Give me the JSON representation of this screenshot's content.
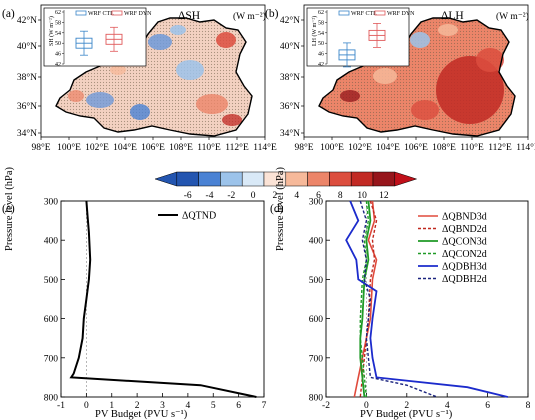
{
  "colors": {
    "neg6": "#2355b0",
    "neg4": "#4a82d4",
    "neg2": "#9cc3ea",
    "neg0": "#d9e9f7",
    "pos0": "#fbe3d6",
    "pos2": "#f6b99a",
    "pos4": "#ec8569",
    "pos6": "#dc4e3e",
    "pos8": "#c22a24",
    "pos10": "#96151b",
    "ctl": "#3a86c9",
    "dyn": "#e0595a",
    "red": "#e04a3c",
    "green": "#1f9a26",
    "blue": "#1c2bcc",
    "terrain": "#b6a58e"
  },
  "panels": [
    {
      "label": "(a)",
      "title": "ΔSH",
      "unit": "(W m⁻²)",
      "lat_ticks": [
        "42°N",
        "40°N",
        "38°N",
        "36°N",
        "34°N"
      ],
      "lon_ticks": [
        "98°E",
        "100°E",
        "102°E",
        "104°E",
        "106°E",
        "108°E",
        "110°E",
        "112°E",
        "114°E"
      ],
      "inset": {
        "ylabel": "SH (W m⁻²)",
        "yticks": [
          "62",
          "58",
          "54",
          "50",
          "46",
          "42"
        ],
        "legend": [
          "WRF CTL",
          "WRF DYN"
        ],
        "ctl_median": 50,
        "dyn_median": 51.5
      }
    },
    {
      "label": "(b)",
      "title": "ΔLH",
      "unit": "(W m⁻²)",
      "lat_ticks": [
        "42°N",
        "40°N",
        "38°N",
        "36°N",
        "34°N"
      ],
      "lon_ticks": [
        "98°E",
        "100°E",
        "102°E",
        "104°E",
        "106°E",
        "108°E",
        "110°E",
        "112°E",
        "114°E"
      ],
      "inset": {
        "ylabel": "LH (W m⁻²)",
        "yticks": [
          "62",
          "58",
          "54",
          "50",
          "46",
          "42"
        ],
        "legend": [
          "WRF CTL",
          "WRF DYN"
        ],
        "ctl_median": 45.5,
        "dyn_median": 53
      }
    }
  ],
  "colorbar": {
    "labels": [
      "-6",
      "-4",
      "-2",
      "0",
      "2",
      "4",
      "6",
      "8",
      "10",
      "12"
    ]
  },
  "chart_data": [
    {
      "type": "line",
      "panel_label": "(c)",
      "xlabel": "PV Budget (PVU s⁻¹)",
      "ylabel": "Pressure level (hPa)",
      "xlim": [
        -1,
        7
      ],
      "ylim": [
        800,
        300
      ],
      "xticks": [
        -1,
        0,
        1,
        2,
        3,
        4,
        5,
        6,
        7
      ],
      "yticks": [
        300,
        400,
        500,
        600,
        700,
        800
      ],
      "legend": "top-right",
      "series": [
        {
          "name": "ΔQTND",
          "x": [
            0,
            0.05,
            0.1,
            0.15,
            0.1,
            0.0,
            -0.1,
            -0.15,
            -0.3,
            -0.5,
            -0.6,
            4.5,
            6.7
          ],
          "y": [
            300,
            340,
            380,
            450,
            500,
            550,
            600,
            650,
            700,
            740,
            750,
            770,
            800
          ]
        }
      ]
    },
    {
      "type": "line",
      "panel_label": "(d)",
      "xlabel": "PV Budget (PVU s⁻¹)",
      "ylabel": "Pressure level (hPa)",
      "xlim": [
        -2,
        8
      ],
      "ylim": [
        800,
        300
      ],
      "xticks": [
        -2,
        0,
        2,
        4,
        6,
        8
      ],
      "yticks": [
        300,
        400,
        500,
        600,
        700,
        800
      ],
      "legend": "top-right",
      "series": [
        {
          "name": "ΔQBND3d",
          "x": [
            0.3,
            0.4,
            0.1,
            0.5,
            0.3,
            0.2,
            0.0,
            -0.2,
            -0.4,
            -0.6
          ],
          "y": [
            300,
            350,
            400,
            450,
            500,
            600,
            650,
            700,
            750,
            800
          ]
        },
        {
          "name": "ΔQBND2d",
          "x": [
            0.2,
            0.5,
            0.3,
            0.4,
            0.2,
            0.1,
            0.0,
            -0.1,
            -0.2,
            -0.3
          ],
          "y": [
            300,
            350,
            400,
            450,
            500,
            600,
            650,
            700,
            750,
            800
          ]
        },
        {
          "name": "ΔQCON3d",
          "x": [
            0.1,
            0.2,
            0.0,
            0.1,
            -0.1,
            -0.2,
            -0.3,
            -0.3,
            -0.2,
            -0.1
          ],
          "y": [
            300,
            350,
            400,
            450,
            500,
            600,
            650,
            700,
            750,
            800
          ]
        },
        {
          "name": "ΔQCON2d",
          "x": [
            0.0,
            0.1,
            -0.1,
            0.0,
            -0.2,
            -0.3,
            -0.3,
            -0.2,
            -0.1,
            0.0
          ],
          "y": [
            300,
            350,
            400,
            450,
            500,
            600,
            650,
            700,
            750,
            800
          ]
        },
        {
          "name": "ΔQDBH3d",
          "x": [
            -0.8,
            -0.4,
            -1.0,
            -0.5,
            -0.4,
            0.5,
            0.3,
            0.2,
            0.3,
            0.5,
            5.0,
            7.0
          ],
          "y": [
            300,
            350,
            400,
            450,
            500,
            530,
            600,
            650,
            700,
            750,
            775,
            800
          ]
        },
        {
          "name": "ΔQDBH2d",
          "x": [
            -0.3,
            0.0,
            -0.2,
            0.0,
            -0.1,
            0.2,
            0.1,
            0.0,
            0.1,
            0.2,
            2.0,
            3.5
          ],
          "y": [
            300,
            350,
            400,
            450,
            500,
            550,
            600,
            650,
            700,
            750,
            770,
            800
          ]
        }
      ]
    }
  ]
}
